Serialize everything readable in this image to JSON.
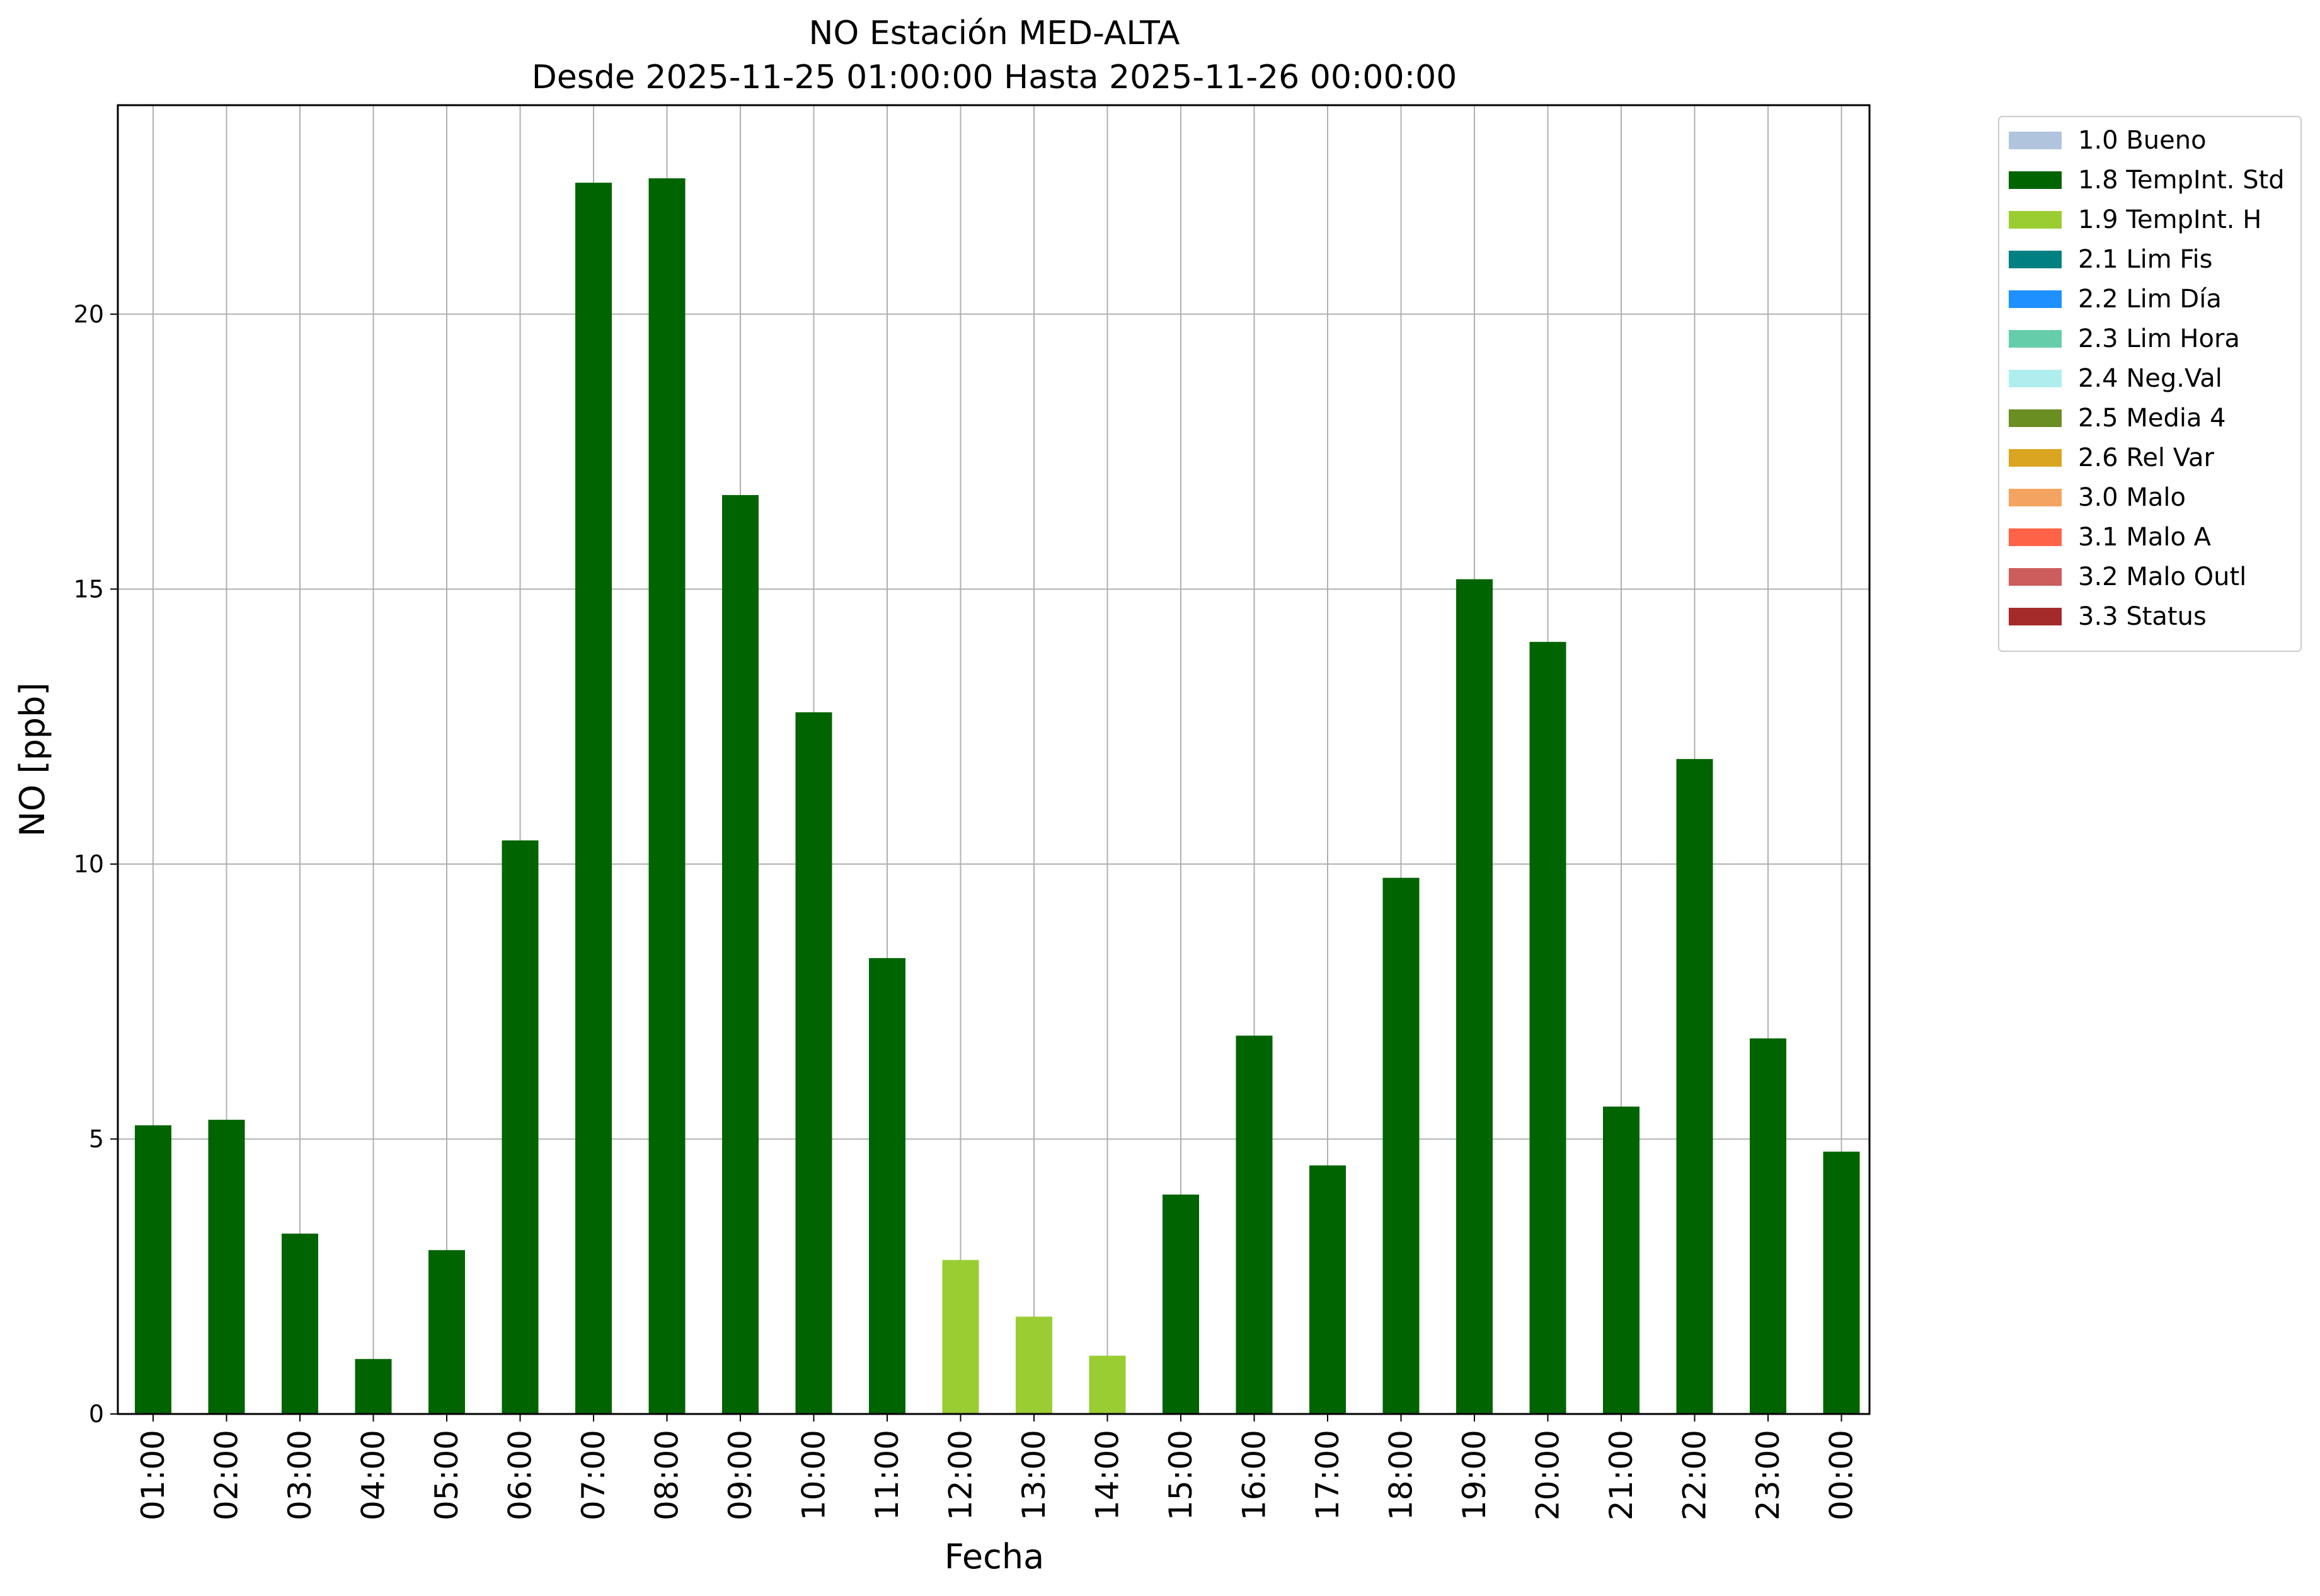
{
  "chart_data": {
    "type": "bar",
    "title": "NO Estación MED-ALTA",
    "subtitle": "Desde 2025-11-25 01:00:00 Hasta 2025-11-26 00:00:00",
    "xlabel": "Fecha",
    "ylabel": "NO [ppb]",
    "ylim": [
      0,
      23.8
    ],
    "yticks": [
      0,
      5,
      10,
      15,
      20
    ],
    "grid": true,
    "legend_position": "outside-top-right",
    "categories": [
      "01:00",
      "02:00",
      "03:00",
      "04:00",
      "05:00",
      "06:00",
      "07:00",
      "08:00",
      "09:00",
      "10:00",
      "11:00",
      "12:00",
      "13:00",
      "14:00",
      "15:00",
      "16:00",
      "17:00",
      "18:00",
      "19:00",
      "20:00",
      "21:00",
      "22:00",
      "23:00",
      "00:00"
    ],
    "values": [
      5.25,
      5.35,
      3.28,
      1.0,
      2.98,
      10.43,
      22.39,
      22.47,
      16.71,
      12.76,
      8.29,
      2.8,
      1.77,
      1.06,
      3.99,
      6.88,
      4.52,
      9.75,
      15.18,
      14.04,
      5.59,
      11.91,
      6.83,
      4.77
    ],
    "flags": [
      "1.8",
      "1.8",
      "1.8",
      "1.8",
      "1.8",
      "1.8",
      "1.8",
      "1.8",
      "1.8",
      "1.8",
      "1.8",
      "1.9",
      "1.9",
      "1.9",
      "1.8",
      "1.8",
      "1.8",
      "1.8",
      "1.8",
      "1.8",
      "1.8",
      "1.8",
      "1.8",
      "1.8"
    ],
    "legend": [
      {
        "code": "1.0",
        "label": "1.0 Bueno",
        "color": "#b0c4de"
      },
      {
        "code": "1.8",
        "label": "1.8 TempInt. Std",
        "color": "#006400"
      },
      {
        "code": "1.9",
        "label": "1.9 TempInt. H",
        "color": "#9acd32"
      },
      {
        "code": "2.1",
        "label": "2.1 Lim Fis",
        "color": "#008080"
      },
      {
        "code": "2.2",
        "label": "2.2 Lim Día",
        "color": "#1e90ff"
      },
      {
        "code": "2.3",
        "label": "2.3 Lim Hora",
        "color": "#66cdaa"
      },
      {
        "code": "2.4",
        "label": "2.4 Neg.Val",
        "color": "#afeeee"
      },
      {
        "code": "2.5",
        "label": "2.5 Media 4",
        "color": "#6b8e23"
      },
      {
        "code": "2.6",
        "label": "2.6 Rel Var",
        "color": "#daa520"
      },
      {
        "code": "3.0",
        "label": "3.0 Malo",
        "color": "#f4a460"
      },
      {
        "code": "3.1",
        "label": "3.1 Malo A",
        "color": "#ff6347"
      },
      {
        "code": "3.2",
        "label": "3.2 Malo Outl",
        "color": "#cd5c5c"
      },
      {
        "code": "3.3",
        "label": "3.3 Status",
        "color": "#a52a2a"
      }
    ]
  }
}
